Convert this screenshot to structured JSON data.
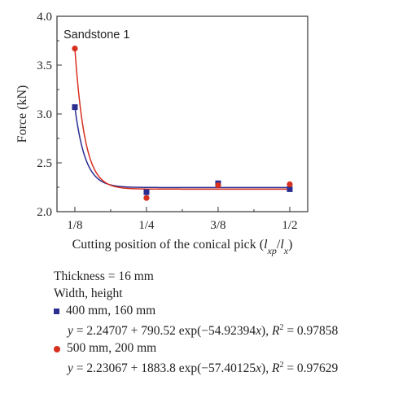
{
  "chart_data": {
    "type": "scatter",
    "title": "Sandstone 1",
    "xlabel_main": "Cutting position of the conical pick (",
    "xlabel_var1": "l",
    "xlabel_sub1": "xp",
    "xlabel_sep": "/",
    "xlabel_var2": "l",
    "xlabel_sub2": "x",
    "xlabel_end": ")",
    "ylabel": "Force (kN)",
    "categories": [
      "1/8",
      "1/4",
      "3/8",
      "1/2"
    ],
    "x": [
      0.125,
      0.25,
      0.375,
      0.5
    ],
    "xlim": [
      0.0938,
      0.5313
    ],
    "ylim": [
      2.0,
      4.0
    ],
    "yticks": [
      "2.0",
      "2.5",
      "3.0",
      "3.5",
      "4.0"
    ],
    "grid": false,
    "series": [
      {
        "name": "400 mm, 160 mm",
        "marker": "square",
        "color": "#2b2d91",
        "values": [
          3.07,
          2.2,
          2.29,
          2.23
        ],
        "fit": {
          "a": 2.24707,
          "b": 790.52,
          "c": 54.92394
        },
        "equation": "y = 2.24707 + 790.52 exp(−54.92394x), R² = 0.97858"
      },
      {
        "name": "500 mm, 200 mm",
        "marker": "circle",
        "color": "#d8301f",
        "values": [
          3.67,
          2.14,
          2.27,
          2.28
        ],
        "fit": {
          "a": 2.23067,
          "b": 1883.8,
          "c": 57.40125
        },
        "equation": "y = 2.23067 + 1883.8 exp(−57.40125x), R² = 0.97629"
      }
    ]
  },
  "legend": {
    "thickness": "Thickness = 16 mm",
    "width_height": "Width, height",
    "s1_label": "400 mm, 160 mm",
    "s1_eq_y": "y",
    "s1_eq_mid": " = 2.24707 + 790.52 exp(−54.92394",
    "s1_eq_x": "x",
    "s1_eq_close": "), ",
    "s1_eq_R": "R",
    "s1_eq_sup": "2",
    "s1_eq_val": " = 0.97858",
    "s2_label": "500 mm, 200 mm",
    "s2_eq_y": "y",
    "s2_eq_mid": " = 2.23067 + 1883.8 exp(−57.40125",
    "s2_eq_x": "x",
    "s2_eq_close": "), ",
    "s2_eq_R": "R",
    "s2_eq_sup": "2",
    "s2_eq_val": " = 0.97629"
  }
}
